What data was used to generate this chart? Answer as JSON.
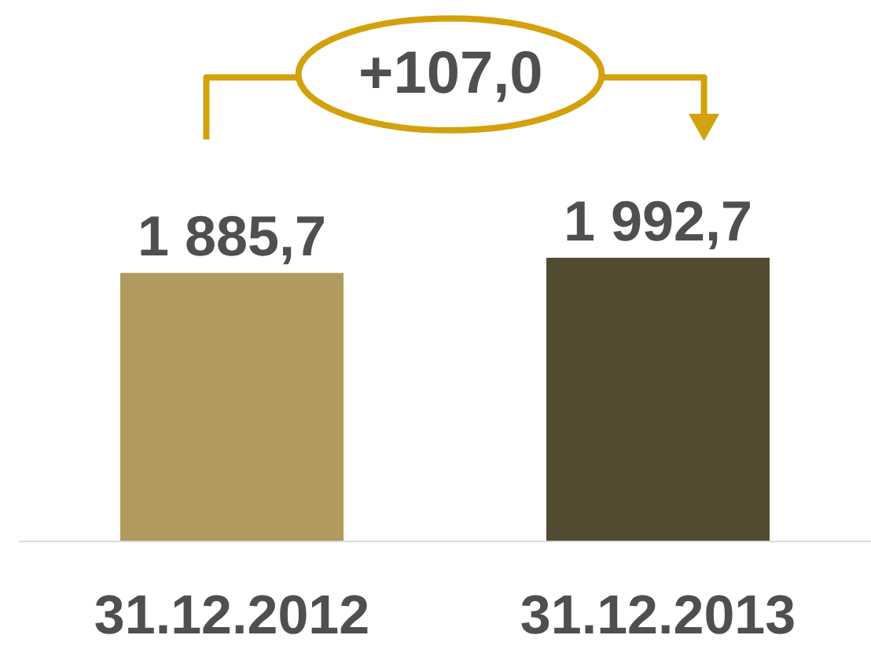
{
  "chart_data": {
    "type": "bar",
    "categories": [
      "31.12.2012",
      "31.12.2013"
    ],
    "values": [
      1885.7,
      1992.7
    ],
    "colors": [
      "#b09a5e",
      "#524b31"
    ],
    "value_labels": [
      "1 885,7",
      "1 992,7"
    ],
    "annotations": [
      "+107,0"
    ]
  }
}
